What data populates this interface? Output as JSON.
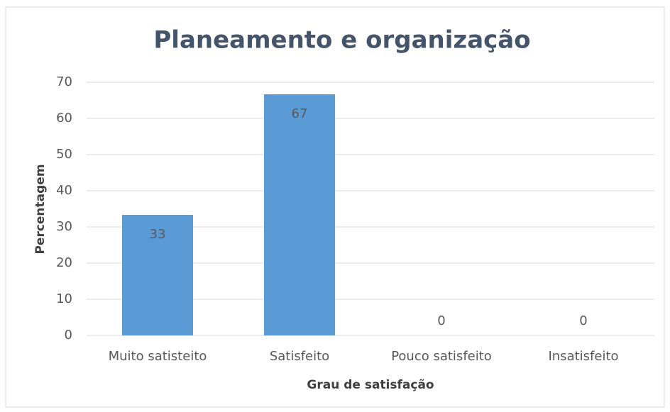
{
  "chart_data": {
    "type": "bar",
    "title": "Planeamento e organização",
    "categories": [
      "Muito satisteito",
      "Satisfeito",
      "Pouco satisfeito",
      "Insatisfeito"
    ],
    "values": [
      33.33,
      66.67,
      0,
      0
    ],
    "value_labels": [
      "33",
      "67",
      "0",
      "0"
    ],
    "color": "#5b9bd5",
    "x_label": "Grau de satisfação",
    "y_label": "Percentagem",
    "ylim": [
      0,
      70
    ],
    "yticks": [
      0,
      10,
      20,
      30,
      40,
      50,
      60,
      70
    ],
    "grid": true
  }
}
